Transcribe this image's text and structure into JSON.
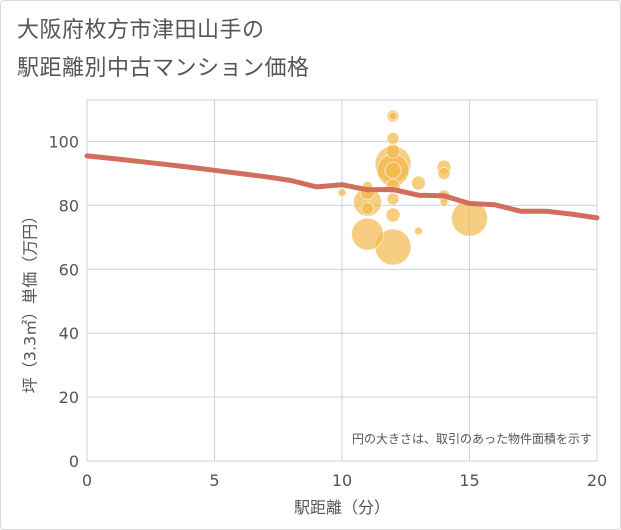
{
  "title_line1": "大阪府枚方市津田山手の",
  "title_line2": "駅距離別中古マンション価格",
  "chart_data": {
    "type": "scatter",
    "title": "大阪府枚方市津田山手の駅距離別中古マンション価格",
    "xlabel": "駅距離（分）",
    "ylabel": "坪（3.3㎡）単価（万円）",
    "xlim": [
      0,
      20
    ],
    "ylim": [
      0,
      113
    ],
    "xticks": [
      0,
      5,
      10,
      15,
      20
    ],
    "yticks": [
      0,
      20,
      40,
      60,
      80,
      100
    ],
    "grid": true,
    "annotation": "円の大きさは、取引のあった物件面積を示す",
    "colors": {
      "bubble": "#f2b84b",
      "trend": "#d16e5c",
      "grid": "#c8d6e0"
    },
    "bubbles": [
      {
        "x": 10,
        "y": 84,
        "size": 4
      },
      {
        "x": 11,
        "y": 86,
        "size": 5
      },
      {
        "x": 11,
        "y": 84,
        "size": 7
      },
      {
        "x": 11,
        "y": 81,
        "size": 14
      },
      {
        "x": 11,
        "y": 79,
        "size": 6
      },
      {
        "x": 11,
        "y": 71,
        "size": 16
      },
      {
        "x": 12,
        "y": 108,
        "size": 6
      },
      {
        "x": 12,
        "y": 108,
        "size": 4
      },
      {
        "x": 12,
        "y": 101,
        "size": 6
      },
      {
        "x": 12,
        "y": 97,
        "size": 7
      },
      {
        "x": 12,
        "y": 93,
        "size": 18
      },
      {
        "x": 12,
        "y": 91,
        "size": 16
      },
      {
        "x": 12,
        "y": 91,
        "size": 8
      },
      {
        "x": 12,
        "y": 86,
        "size": 7
      },
      {
        "x": 12,
        "y": 82,
        "size": 6
      },
      {
        "x": 12,
        "y": 77,
        "size": 7
      },
      {
        "x": 12,
        "y": 67,
        "size": 18
      },
      {
        "x": 13,
        "y": 87,
        "size": 7
      },
      {
        "x": 13,
        "y": 72,
        "size": 4
      },
      {
        "x": 14,
        "y": 92,
        "size": 7
      },
      {
        "x": 14,
        "y": 90,
        "size": 6
      },
      {
        "x": 14,
        "y": 83,
        "size": 6
      },
      {
        "x": 14,
        "y": 81,
        "size": 4
      },
      {
        "x": 15,
        "y": 76,
        "size": 18
      }
    ],
    "trend": {
      "x": [
        0,
        1,
        2,
        3,
        4,
        5,
        6,
        7,
        8,
        9,
        10,
        11,
        12,
        13,
        14,
        15,
        16,
        17,
        18,
        19,
        20
      ],
      "y": [
        95.5,
        94.7,
        93.8,
        92.9,
        92.0,
        91.0,
        90.0,
        89.0,
        87.8,
        85.8,
        86.5,
        84.9,
        85.0,
        83.2,
        83.0,
        80.6,
        80.2,
        78.2,
        78.2,
        77.3,
        76.1
      ]
    }
  }
}
